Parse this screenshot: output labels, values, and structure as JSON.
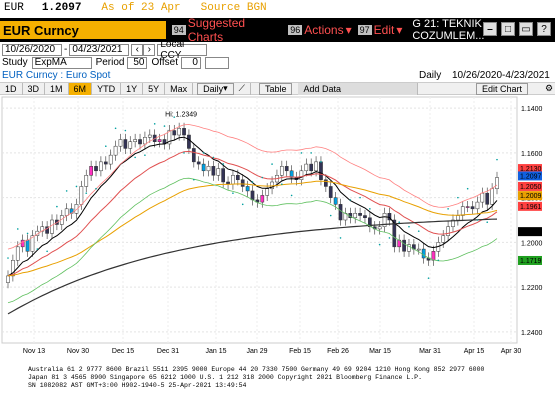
{
  "topbar": {
    "ticker": "EUR",
    "price": "1.2097",
    "as_of": "As of 23 Apr",
    "source": "Source BGN"
  },
  "security": {
    "name": "EUR Curncy"
  },
  "menu": {
    "suggested": {
      "num": "94",
      "label": "Suggested Charts"
    },
    "actions": {
      "num": "96",
      "label": "Actions"
    },
    "edit": {
      "num": "97",
      "label": "Edit"
    },
    "title": "G 21: TEKNIK COZUMLEM..."
  },
  "range": {
    "start": "10/26/2020",
    "end": "04/23/2021",
    "currency": "Local CCY"
  },
  "study": {
    "label": "Study",
    "value": "ExpMA",
    "period_label": "Period",
    "period": "50",
    "offset_label": "Offset",
    "offset": "0"
  },
  "desc": {
    "left": "EUR Curncy : Euro Spot",
    "freq": "Daily",
    "range": "10/26/2020-4/23/2021"
  },
  "periods": [
    "1D",
    "3D",
    "1M",
    "6M",
    "YTD",
    "1Y",
    "5Y",
    "Max"
  ],
  "active_period": "6M",
  "frequency": "Daily",
  "table_label": "Table",
  "add_data_label": "Add Data",
  "edit_chart_label": "Edit Chart",
  "high_label": "Hi: 1.2349",
  "y_ticks": [
    "1.2400",
    "1.2200",
    "1.2000",
    "1.1800",
    "1.1600",
    "1.1400"
  ],
  "x_ticks": [
    "Nov 13",
    "Nov 30",
    "Dec 15",
    "Dec 31",
    "Jan 15",
    "Jan 29",
    "Feb 15",
    "Feb 26",
    "Mar 15",
    "Mar 31",
    "Apr 15",
    "Apr 30"
  ],
  "year_labels": [
    "2020",
    "2021"
  ],
  "value_tags": [
    "1.2130",
    "1.2097",
    "1.2050",
    "1.2009",
    "1.1961",
    "1.1848",
    "1.1719"
  ],
  "colors": {
    "tag1": "#ff4040",
    "tag2": "#1060e0",
    "tag3": "#ff4040",
    "tag4": "#e8a000",
    "tag5": "#ff4040",
    "tag6": "#000000",
    "tag7": "#20a020"
  },
  "footer": {
    "line1": "Australia 61 2 9777 8600 Brazil 5511 2395 9000 Europe 44 20 7330 7500 Germany 49 69 9204 1210 Hong Kong 852 2977 6000",
    "line2": "Japan 81 3 4565 8900       Singapore 65 6212 1000       U.S. 1 212 318 2000            Copyright 2021 Bloomberg Finance L.P.",
    "line3": "SN 1082082 AST  GMT+3:00 H902-1940-5 25-Apr-2021 13:49:54"
  },
  "chart_data": {
    "type": "candlestick",
    "ylim": [
      1.135,
      1.245
    ],
    "ticks_y": [
      1.14,
      1.16,
      1.18,
      1.2,
      1.22,
      1.24
    ],
    "closes": [
      1.165,
      1.172,
      1.178,
      1.181,
      1.176,
      1.183,
      1.185,
      1.187,
      1.184,
      1.19,
      1.188,
      1.192,
      1.195,
      1.193,
      1.197,
      1.205,
      1.21,
      1.214,
      1.212,
      1.216,
      1.215,
      1.219,
      1.223,
      1.226,
      1.222,
      1.225,
      1.226,
      1.224,
      1.227,
      1.228,
      1.225,
      1.226,
      1.224,
      1.23,
      1.228,
      1.231,
      1.228,
      1.222,
      1.216,
      1.215,
      1.212,
      1.214,
      1.21,
      1.213,
      1.207,
      1.206,
      1.21,
      1.208,
      1.205,
      1.203,
      1.199,
      1.198,
      1.201,
      1.204,
      1.207,
      1.21,
      1.214,
      1.212,
      1.209,
      1.208,
      1.212,
      1.215,
      1.212,
      1.216,
      1.208,
      1.205,
      1.2,
      1.197,
      1.19,
      1.193,
      1.191,
      1.193,
      1.192,
      1.191,
      1.187,
      1.186,
      1.187,
      1.193,
      1.19,
      1.178,
      1.181,
      1.176,
      1.179,
      1.177,
      1.177,
      1.173,
      1.172,
      1.176,
      1.18,
      1.183,
      1.187,
      1.19,
      1.192,
      1.196,
      1.196,
      1.195,
      1.198,
      1.202,
      1.197,
      1.204,
      1.209
    ],
    "high_value": 1.2349
  }
}
